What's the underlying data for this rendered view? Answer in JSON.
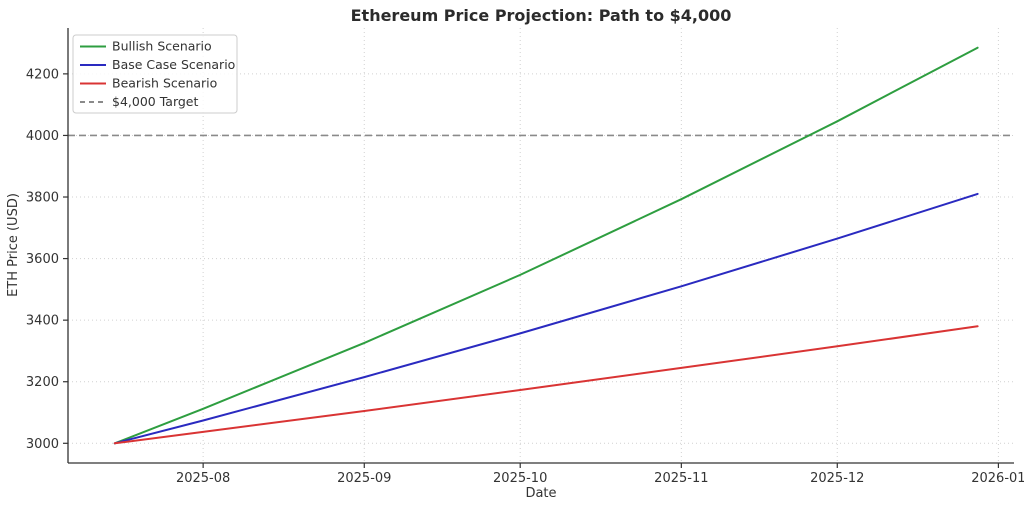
{
  "chart_data": {
    "type": "line",
    "title": "Ethereum Price Projection: Path to $4,000",
    "xlabel": "Date",
    "ylabel": "ETH Price (USD)",
    "x_dates": [
      "2025-07-15",
      "2025-08-01",
      "2025-09-01",
      "2025-10-01",
      "2025-11-01",
      "2025-12-01",
      "2025-12-28"
    ],
    "series": [
      {
        "name": "Bullish Scenario",
        "color": "#2e9e40",
        "values": [
          3000,
          3112,
          3326,
          3547,
          3793,
          4046,
          4285
        ]
      },
      {
        "name": "Base Case Scenario",
        "color": "#2a2ac0",
        "values": [
          3000,
          3074,
          3215,
          3357,
          3510,
          3665,
          3810
        ]
      },
      {
        "name": "Bearish Scenario",
        "color": "#d93434",
        "values": [
          3000,
          3037,
          3105,
          3173,
          3245,
          3315,
          3380
        ]
      }
    ],
    "target": {
      "label": "$4,000 Target",
      "value": 4000,
      "color": "#8a8a8a",
      "style": "dashed"
    },
    "y_ticks": [
      3000,
      3200,
      3400,
      3600,
      3800,
      4000,
      4200
    ],
    "x_tick_dates": [
      "2025-08-01",
      "2025-09-01",
      "2025-10-01",
      "2025-11-01",
      "2025-12-01",
      "2026-01-01"
    ],
    "x_tick_labels": [
      "2025-08",
      "2025-09",
      "2025-10",
      "2025-11",
      "2025-12",
      "2026-01"
    ],
    "xlim": [
      "2025-07-06",
      "2026-01-04"
    ],
    "ylim": [
      2936,
      4349
    ],
    "grid": true,
    "grid_style": "dotted",
    "legend_position": "upper left",
    "colors": {
      "bullish": "#2e9e40",
      "base_case": "#2a2ac0",
      "bearish": "#d93434",
      "target": "#8a8a8a",
      "text": "#333333"
    }
  }
}
